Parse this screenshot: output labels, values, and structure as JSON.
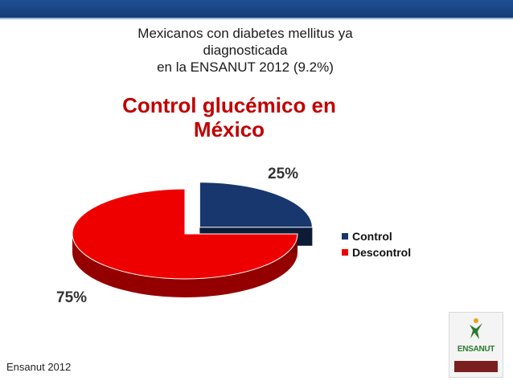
{
  "header": {
    "subtitle_lines": [
      "Mexicanos con diabetes mellitus ya",
      "diagnosticada",
      "en la ENSANUT 2012 (9.2%)"
    ]
  },
  "chart_data": {
    "type": "pie",
    "title_lines": [
      "Control glucémico en",
      "México"
    ],
    "categories": [
      "Control",
      "Descontrol"
    ],
    "values": [
      25,
      75
    ],
    "value_labels": [
      "25%",
      "75%"
    ],
    "colors": [
      "#17376e",
      "#ee0000"
    ],
    "exploded": "Control",
    "legend_position": "right"
  },
  "footer": {
    "source": "Ensanut 2012"
  },
  "logo": {
    "text": "ENSANUT"
  }
}
